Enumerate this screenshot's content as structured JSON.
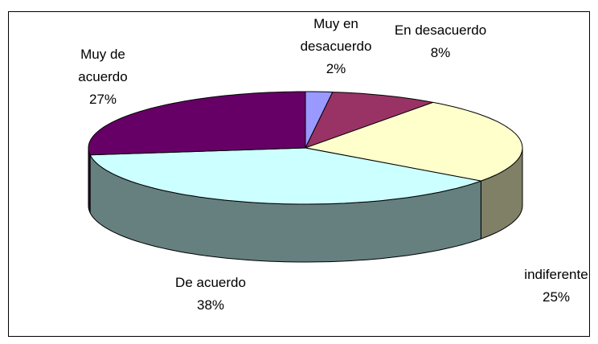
{
  "chart_data": {
    "type": "pie3d",
    "categories": [
      "Muy en desacuerdo",
      "En desacuerdo",
      "indiferente",
      "De acuerdo",
      "Muy de acuerdo"
    ],
    "values": [
      2,
      8,
      25,
      38,
      27
    ],
    "value_labels": [
      "2%",
      "8%",
      "25%",
      "38%",
      "27%"
    ],
    "colors": [
      "#9999ff",
      "#993366",
      "#ffffcc",
      "#ccffff",
      "#660066"
    ]
  }
}
